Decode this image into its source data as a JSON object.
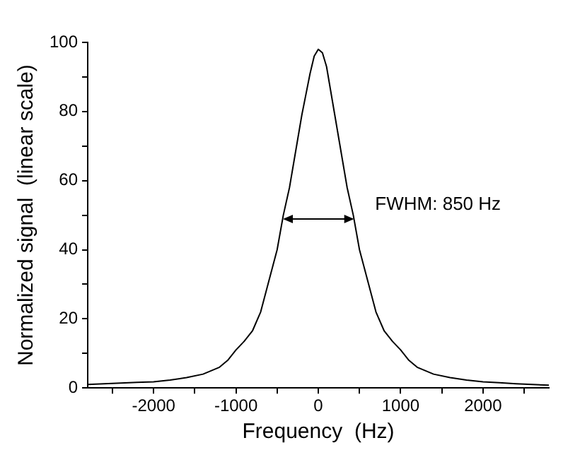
{
  "chart_data": {
    "type": "line",
    "xlabel": "Frequency  (Hz)",
    "ylabel": "Normalized signal  (linear scale)",
    "x": [
      -2800,
      -2600,
      -2400,
      -2200,
      -2000,
      -1800,
      -1600,
      -1400,
      -1200,
      -1100,
      -1000,
      -900,
      -800,
      -700,
      -600,
      -500,
      -425,
      -350,
      -300,
      -250,
      -200,
      -150,
      -100,
      -50,
      0,
      50,
      100,
      150,
      200,
      250,
      300,
      350,
      425,
      500,
      600,
      700,
      800,
      900,
      1000,
      1100,
      1200,
      1400,
      1600,
      1800,
      2000,
      2200,
      2400,
      2600,
      2800
    ],
    "series": [
      {
        "color": "#000000",
        "values": [
          1,
          1.2,
          1.4,
          1.6,
          1.8,
          2.3,
          3,
          4,
          6,
          8,
          11,
          13.5,
          16.5,
          22,
          31,
          40,
          50,
          58,
          65,
          72,
          79,
          85,
          91,
          96,
          98,
          97,
          93,
          86,
          79,
          72,
          65,
          58,
          50,
          40,
          31,
          22,
          16.5,
          13.5,
          11,
          8,
          6,
          4,
          3,
          2.3,
          1.8,
          1.5,
          1.2,
          1,
          0.8
        ]
      }
    ],
    "xlim": [
      -2800,
      2800
    ],
    "xticks": [
      {
        "value": -2500,
        "label": null
      },
      -2000,
      {
        "value": -1500,
        "label": null
      },
      -1000,
      {
        "value": -500,
        "label": null
      },
      0,
      {
        "value": 500,
        "label": null
      },
      1000,
      {
        "value": 1500,
        "label": null
      },
      2000,
      {
        "value": 2500,
        "label": null
      }
    ],
    "ylim": [
      0,
      100
    ],
    "yticks": [
      0,
      {
        "value": 10,
        "label": null
      },
      20,
      {
        "value": 30,
        "label": null
      },
      40,
      {
        "value": 50,
        "label": null
      },
      60,
      {
        "value": 70,
        "label": null
      },
      80,
      {
        "value": 90,
        "label": null
      },
      100
    ],
    "annotations": [
      "FWHM: 850 Hz"
    ],
    "grid": false,
    "legend": false,
    "marker": "none",
    "line_style": "solid"
  }
}
